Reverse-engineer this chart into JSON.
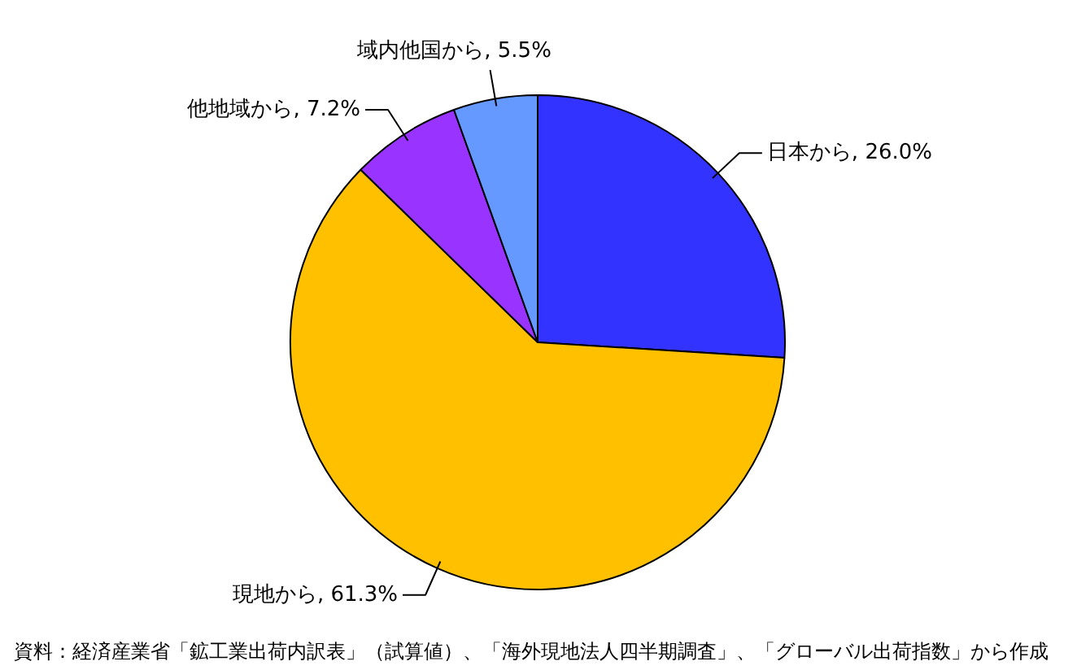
{
  "chart_data": {
    "type": "pie",
    "categories": [
      "日本から",
      "現地から",
      "他地域から",
      "域内他国から"
    ],
    "values": [
      26.0,
      61.3,
      7.2,
      5.5
    ],
    "colors": [
      "#3333ff",
      "#ffc000",
      "#9933ff",
      "#6699ff"
    ],
    "value_labels": [
      "26.0%",
      "61.3%",
      "7.2%",
      "5.5%"
    ],
    "legend": false,
    "annotations": [
      "資料：経済産業省「鉱工業出荷内訳表」（試算値）、「海外現地法人四半期調査」、「グローバル出荷指数」から作成"
    ]
  }
}
